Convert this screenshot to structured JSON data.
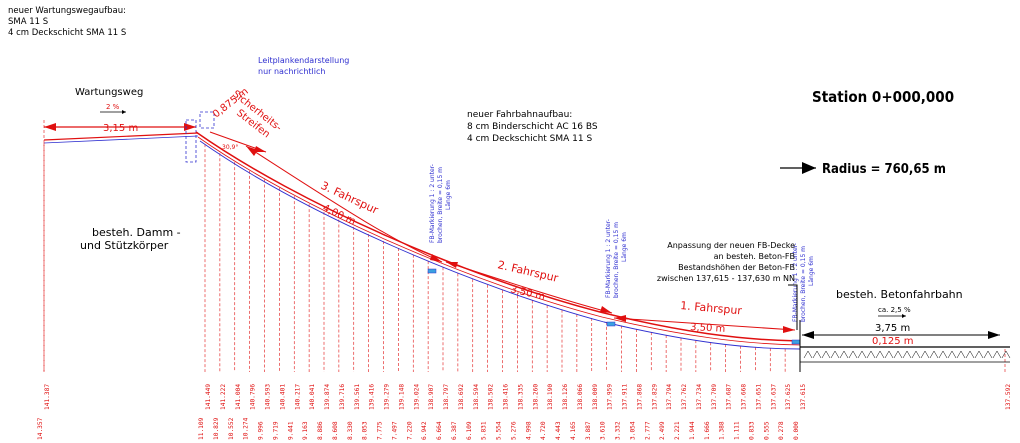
{
  "top_note": [
    "neuer Wartungswegaufbau:",
    "SMA 11 S",
    "4 cm Deckschicht SMA 11 S"
  ],
  "guardrail_note": [
    "Leitplankendarstellung",
    "nur nachrichtlich"
  ],
  "path_label": "Wartungsweg",
  "path_slope": "2 %",
  "path_width": "3,15 m",
  "safety_strip_label": [
    "Sicherheits-",
    "Streifen"
  ],
  "safety_strip_width": "0,875 m",
  "angle_label": "30,9°",
  "pavement_note": [
    "neuer Fahrbahnaufbau:",
    "8 cm Binderschicht AC 16 BS",
    "4 cm Deckschicht SMA 11 S"
  ],
  "station": "Station 0+000,000",
  "radius": "Radius = 760,65 m",
  "embankment_label": [
    "besteh. Damm -",
    "und Stützkörper"
  ],
  "lane3": {
    "label": "3. Fahrspur",
    "width": "4,00 m"
  },
  "lane2": {
    "label": "2. Fahrspur",
    "width": "3,50 m"
  },
  "lane1": {
    "label": "1. Fahrspur",
    "width": "3,50 m"
  },
  "marking_note": [
    "FB-Markierung 1 : 2 unter-",
    "brochen, Breite = 0,15 m",
    "Länge 6m"
  ],
  "adjust_note": [
    "Anpassung der neuen FB-Decke",
    "an besteh. Beton-FB",
    "Bestandshöhen der Beton-FB",
    "zwischen 137,615 - 137,630 m NN"
  ],
  "existing_road": "besteh. Betonfahrbahn",
  "existing_slope": "ca. 2,5 %",
  "existing_width": "3,75 m",
  "existing_offset": "0,125 m",
  "stations_bottom": [
    [
      "14.357",
      "141.387"
    ],
    [
      "11.109",
      "141.449"
    ],
    [
      "10.829",
      "141.222"
    ],
    [
      "10.552",
      "141.004"
    ],
    [
      "10.274",
      "140.796"
    ],
    [
      "9.996",
      "140.593"
    ],
    [
      "9.719",
      "140.401"
    ],
    [
      "9.441",
      "140.217"
    ],
    [
      "9.163",
      "140.041"
    ],
    [
      "8.886",
      "139.874"
    ],
    [
      "8.608",
      "139.716"
    ],
    [
      "8.330",
      "139.561"
    ],
    [
      "8.053",
      "139.416"
    ],
    [
      "7.775",
      "139.279"
    ],
    [
      "7.497",
      "139.148"
    ],
    [
      "7.220",
      "139.024"
    ],
    [
      "6.942",
      "138.907"
    ],
    [
      "6.664",
      "138.797"
    ],
    [
      "6.387",
      "138.692"
    ],
    [
      "6.109",
      "138.594"
    ],
    [
      "5.831",
      "138.502"
    ],
    [
      "5.554",
      "138.416"
    ],
    [
      "5.276",
      "138.335"
    ],
    [
      "4.998",
      "138.260"
    ],
    [
      "4.720",
      "138.190"
    ],
    [
      "4.443",
      "138.126"
    ],
    [
      "4.165",
      "138.066"
    ],
    [
      "3.887",
      "138.009"
    ],
    [
      "3.610",
      "137.959"
    ],
    [
      "3.332",
      "137.911"
    ],
    [
      "3.054",
      "137.868"
    ],
    [
      "2.777",
      "137.829"
    ],
    [
      "2.499",
      "137.794"
    ],
    [
      "2.221",
      "137.762"
    ],
    [
      "1.944",
      "137.734"
    ],
    [
      "1.666",
      "137.709"
    ],
    [
      "1.388",
      "137.687"
    ],
    [
      "1.111",
      "137.668"
    ],
    [
      "0.833",
      "137.651"
    ],
    [
      "0.555",
      "137.637"
    ],
    [
      "0.278",
      "137.625"
    ],
    [
      "0.000",
      "137.615"
    ],
    [
      "",
      "137.592"
    ]
  ]
}
